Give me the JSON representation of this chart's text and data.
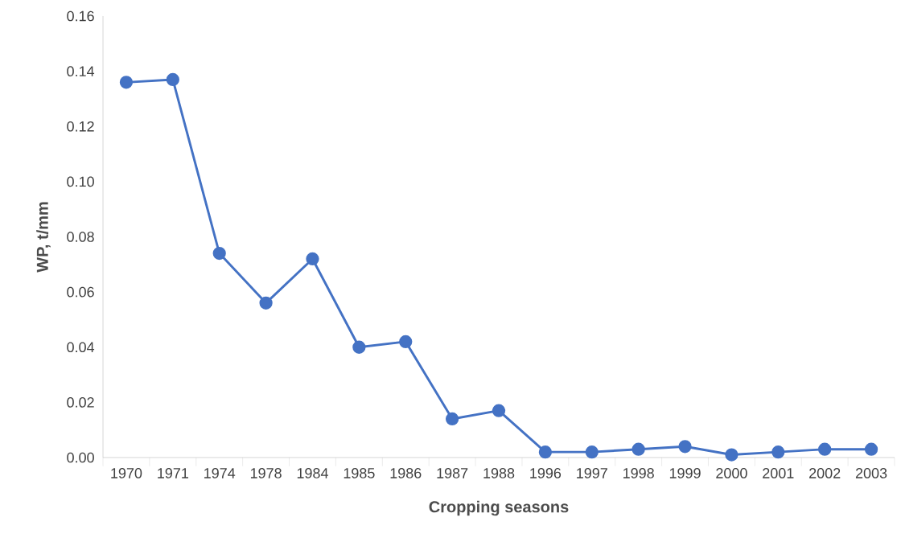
{
  "chart_data": {
    "type": "line",
    "xlabel": "Cropping seasons",
    "ylabel": "WP, t/mm",
    "categories": [
      "1970",
      "1971",
      "1974",
      "1978",
      "1984",
      "1985",
      "1986",
      "1987",
      "1988",
      "1996",
      "1997",
      "1998",
      "1999",
      "2000",
      "2001",
      "2002",
      "2003"
    ],
    "series": [
      {
        "color": "#4472c4",
        "values": [
          0.136,
          0.137,
          0.074,
          0.056,
          0.072,
          0.04,
          0.042,
          0.014,
          0.017,
          0.002,
          0.002,
          0.003,
          0.004,
          0.001,
          0.002,
          0.003,
          0.003
        ]
      }
    ],
    "ylim": [
      0,
      0.16
    ],
    "yticks": [
      {
        "value": 0,
        "label": "0.00"
      },
      {
        "value": 0.02,
        "label": "0.02"
      },
      {
        "value": 0.04,
        "label": "0.04"
      },
      {
        "value": 0.06,
        "label": "0.06"
      },
      {
        "value": 0.08,
        "label": "0.08"
      },
      {
        "value": 0.1,
        "label": "0.10"
      },
      {
        "value": 0.12,
        "label": "0.12"
      },
      {
        "value": 0.14,
        "label": "0.14"
      },
      {
        "value": 0.16,
        "label": "0.16"
      }
    ],
    "marker": "circle",
    "line_style": "solid"
  }
}
